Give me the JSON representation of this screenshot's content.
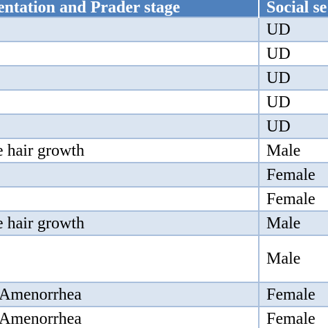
{
  "table": {
    "header": {
      "col1": "entation and Prader stage",
      "col2": "Social se"
    },
    "rows": [
      {
        "col1": "",
        "col2": "UD",
        "shade": true
      },
      {
        "col1": "",
        "col2": "UD",
        "shade": false
      },
      {
        "col1": "",
        "col2": "UD",
        "shade": true
      },
      {
        "col1": "",
        "col2": "UD",
        "shade": false
      },
      {
        "col1": "",
        "col2": "UD",
        "shade": true
      },
      {
        "col1": "e hair growth",
        "col2": "Male",
        "shade": false
      },
      {
        "col1": "",
        "col2": "Female",
        "shade": true
      },
      {
        "col1": "",
        "col2": "Female",
        "shade": false
      },
      {
        "col1": "e hair growth",
        "col2": "Male",
        "shade": true
      },
      {
        "col1": "",
        "col2": "Male",
        "shade": false
      },
      {
        "col1": "Amenorrhea",
        "col2": "Female",
        "shade": true
      },
      {
        "col1": "Amenorrhea",
        "col2": "Female",
        "shade": false
      }
    ]
  },
  "colors": {
    "header_bg": "#4f81bd",
    "shade_bg": "#dbe5f1",
    "border": "#a9bfdc"
  }
}
